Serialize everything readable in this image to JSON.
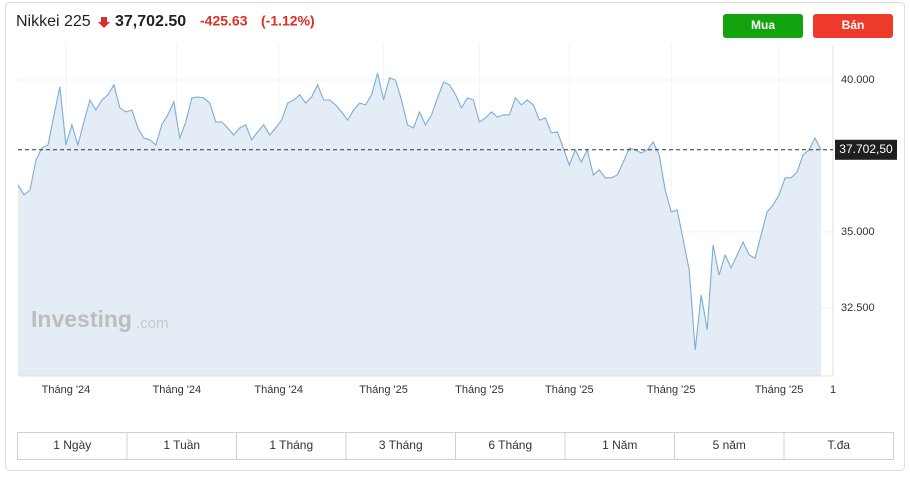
{
  "header": {
    "symbol": "Nikkei 225",
    "price": "37,702.50",
    "change": "-425.63",
    "change_pct": "(-1.12%)"
  },
  "buttons": {
    "buy": "Mua",
    "sell": "Bán"
  },
  "watermark": {
    "brand": "Investing",
    "suffix": ".com"
  },
  "ranges": [
    "1 Ngày",
    "1 Tuần",
    "1 Tháng",
    "3 Tháng",
    "6 Tháng",
    "1 Năm",
    "5 năm",
    "T.đa"
  ],
  "chart_data": {
    "type": "area",
    "color": "#7aaed6",
    "fill": "#e4edf5",
    "grid": true,
    "values": [
      36550,
      36220,
      36380,
      37370,
      37760,
      37860,
      38850,
      39770,
      37860,
      38520,
      37860,
      38620,
      39340,
      39010,
      39340,
      39510,
      39840,
      39080,
      38950,
      39010,
      38420,
      38090,
      38030,
      37860,
      38520,
      38850,
      39280,
      38090,
      38620,
      39410,
      39440,
      39410,
      39240,
      38620,
      38620,
      38420,
      38190,
      38420,
      38520,
      38030,
      38290,
      38520,
      38190,
      38420,
      38680,
      39240,
      39340,
      39510,
      39240,
      39440,
      39840,
      39340,
      39340,
      39180,
      38950,
      38680,
      39010,
      39240,
      39180,
      39510,
      40230,
      39340,
      40070,
      40000,
      39340,
      38520,
      38420,
      38950,
      38520,
      38850,
      39410,
      39930,
      39840,
      39510,
      39080,
      39410,
      39340,
      38620,
      38750,
      38950,
      38780,
      38850,
      38850,
      39410,
      39180,
      39340,
      39180,
      38680,
      38750,
      38260,
      38290,
      37760,
      37200,
      37700,
      37300,
      37700,
      36870,
      37040,
      36780,
      36780,
      36870,
      37300,
      37760,
      37700,
      37600,
      37700,
      37960,
      37530,
      36380,
      35660,
      35720,
      34740,
      33750,
      31120,
      32930,
      31780,
      34570,
      33580,
      34240,
      33820,
      34240,
      34670,
      34240,
      34140,
      34900,
      35660,
      35890,
      36220,
      36780,
      36780,
      36970,
      37530,
      37700,
      38090,
      37700
    ],
    "xlim": [
      0,
      136
    ],
    "xticks": [
      {
        "value": 8,
        "label": "Tháng '24"
      },
      {
        "value": 26.5,
        "label": "Tháng '24"
      },
      {
        "value": 43.5,
        "label": "Tháng '24"
      },
      {
        "value": 61,
        "label": "Tháng '25"
      },
      {
        "value": 77,
        "label": "Tháng '25"
      },
      {
        "value": 92,
        "label": "Tháng '25"
      },
      {
        "value": 109,
        "label": "Tháng '25"
      },
      {
        "value": 127,
        "label": "Tháng '25"
      },
      {
        "value": 136,
        "label": "1"
      }
    ],
    "ylim": [
      30260,
      41150
    ],
    "yticks": [
      {
        "value": 32500,
        "label": "32.500"
      },
      {
        "value": 35000,
        "label": "35.000"
      },
      {
        "value": 40000,
        "label": "40.000"
      }
    ],
    "reference": {
      "value": 37702.5,
      "label": "37.702,50"
    }
  }
}
